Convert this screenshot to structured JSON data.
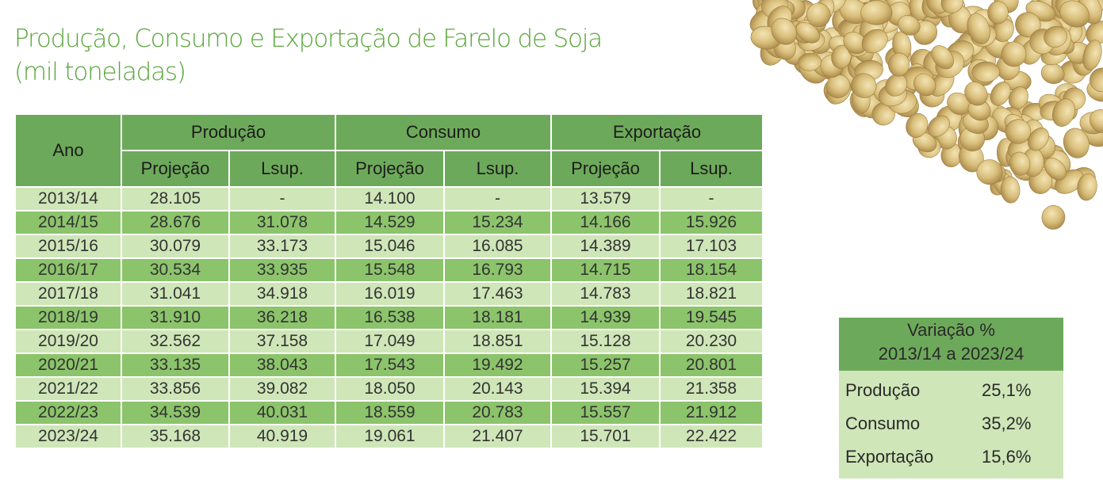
{
  "title": {
    "line1": "Produção, Consumo e Exportação de Farelo de Soja",
    "line2": "(mil toneladas)"
  },
  "table": {
    "header_year": "Ano",
    "groups": [
      "Produção",
      "Consumo",
      "Exportação"
    ],
    "subheaders": [
      "Projeção",
      "Lsup.",
      "Projeção",
      "Lsup.",
      "Projeção",
      "Lsup."
    ],
    "rows": [
      [
        "2013/14",
        "28.105",
        "-",
        "14.100",
        "-",
        "13.579",
        "-"
      ],
      [
        "2014/15",
        "28.676",
        "31.078",
        "14.529",
        "15.234",
        "14.166",
        "15.926"
      ],
      [
        "2015/16",
        "30.079",
        "33.173",
        "15.046",
        "16.085",
        "14.389",
        "17.103"
      ],
      [
        "2016/17",
        "30.534",
        "33.935",
        "15.548",
        "16.793",
        "14.715",
        "18.154"
      ],
      [
        "2017/18",
        "31.041",
        "34.918",
        "16.019",
        "17.463",
        "14.783",
        "18.821"
      ],
      [
        "2018/19",
        "31.910",
        "36.218",
        "16.538",
        "18.181",
        "14.939",
        "19.545"
      ],
      [
        "2019/20",
        "32.562",
        "37.158",
        "17.049",
        "18.851",
        "15.128",
        "20.230"
      ],
      [
        "2020/21",
        "33.135",
        "38.043",
        "17.543",
        "19.492",
        "15.257",
        "20.801"
      ],
      [
        "2021/22",
        "33.856",
        "39.082",
        "18.050",
        "20.143",
        "15.394",
        "21.358"
      ],
      [
        "2022/23",
        "34.539",
        "40.031",
        "18.559",
        "20.783",
        "15.557",
        "21.912"
      ],
      [
        "2023/24",
        "35.168",
        "40.919",
        "19.061",
        "21.407",
        "15.701",
        "22.422"
      ]
    ]
  },
  "summary": {
    "title_line1": "Variação %",
    "title_line2": "2013/14 a 2023/24",
    "items": [
      {
        "label": "Produção",
        "value": "25,1%"
      },
      {
        "label": "Consumo",
        "value": "35,2%"
      },
      {
        "label": "Exportação",
        "value": "15,6%"
      }
    ]
  },
  "colors": {
    "title": "#5aa53c",
    "header": "#6da95a",
    "row_light": "#cfe6b8",
    "row_dark": "#8cc46b"
  },
  "chart_data": {
    "type": "table",
    "title": "Produção, Consumo e Exportação de Farelo de Soja (mil toneladas)",
    "columns": [
      "Ano",
      "Produção Projeção",
      "Produção Lsup.",
      "Consumo Projeção",
      "Consumo Lsup.",
      "Exportação Projeção",
      "Exportação Lsup."
    ],
    "categories": [
      "2013/14",
      "2014/15",
      "2015/16",
      "2016/17",
      "2017/18",
      "2018/19",
      "2019/20",
      "2020/21",
      "2021/22",
      "2022/23",
      "2023/24"
    ],
    "series": [
      {
        "name": "Produção Projeção",
        "values": [
          28105,
          28676,
          30079,
          30534,
          31041,
          31910,
          32562,
          33135,
          33856,
          34539,
          35168
        ]
      },
      {
        "name": "Produção Lsup.",
        "values": [
          null,
          31078,
          33173,
          33935,
          34918,
          36218,
          37158,
          38043,
          39082,
          40031,
          40919
        ]
      },
      {
        "name": "Consumo Projeção",
        "values": [
          14100,
          14529,
          15046,
          15548,
          16019,
          16538,
          17049,
          17543,
          18050,
          18559,
          19061
        ]
      },
      {
        "name": "Consumo Lsup.",
        "values": [
          null,
          15234,
          16085,
          16793,
          17463,
          18181,
          18851,
          19492,
          20143,
          20783,
          21407
        ]
      },
      {
        "name": "Exportação Projeção",
        "values": [
          13579,
          14166,
          14389,
          14715,
          14783,
          14939,
          15128,
          15257,
          15394,
          15557,
          15701
        ]
      },
      {
        "name": "Exportação Lsup.",
        "values": [
          null,
          15926,
          17103,
          18154,
          18821,
          19545,
          20230,
          20801,
          21358,
          21912,
          22422
        ]
      }
    ],
    "variation_2013_14_to_2023_24_percent": {
      "Produção": 25.1,
      "Consumo": 35.2,
      "Exportação": 15.6
    }
  }
}
